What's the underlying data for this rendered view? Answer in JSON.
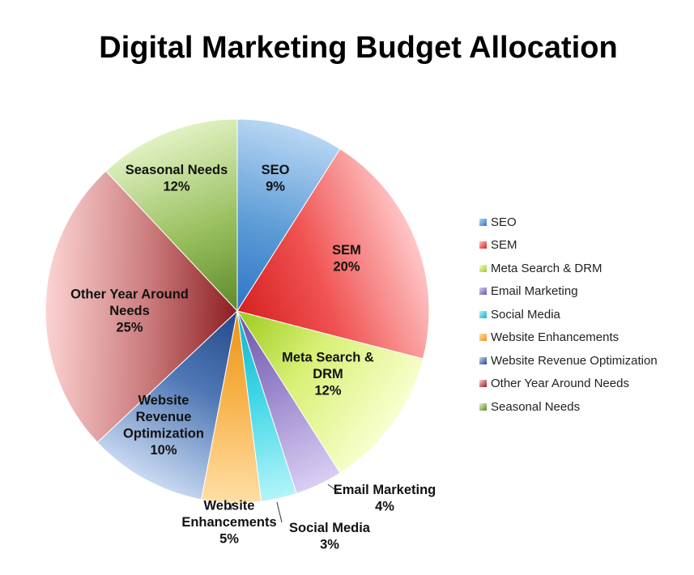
{
  "chart_data": {
    "type": "pie",
    "title": "Digital Marketing Budget Allocation",
    "legend_position": "right",
    "slices": [
      {
        "name": "SEO",
        "value": 9,
        "label_lines": [
          "SEO",
          "9%"
        ],
        "color": "#5B9BD5",
        "light": "#B9D7F4",
        "dark": "#2E75C8"
      },
      {
        "name": "SEM",
        "value": 20,
        "label_lines": [
          "SEM",
          "20%"
        ],
        "color": "#F05252",
        "light": "#FFC6C6",
        "dark": "#D62020"
      },
      {
        "name": "Meta Search & DRM",
        "value": 12,
        "label_lines": [
          "Meta Search &",
          "DRM",
          "12%"
        ],
        "color": "#D8F075",
        "light": "#F9FFD0",
        "dark": "#9CCB1E"
      },
      {
        "name": "Email Marketing",
        "value": 4,
        "label_lines": [
          "Email Marketing",
          "4%"
        ],
        "color": "#9A86CC",
        "light": "#D9CFF3",
        "dark": "#6A55A6"
      },
      {
        "name": "Social Media",
        "value": 3,
        "label_lines": [
          "Social Media",
          "3%"
        ],
        "color": "#3ED6E6",
        "light": "#B4F4FA",
        "dark": "#12B0C8"
      },
      {
        "name": "Website Enhancements",
        "value": 5,
        "label_lines": [
          "Website",
          "Enhancements",
          "5%"
        ],
        "color": "#F7B24A",
        "light": "#FFDFA6",
        "dark": "#EA9416"
      },
      {
        "name": "Website Revenue Optimization",
        "value": 10,
        "label_lines": [
          "Website",
          "Revenue",
          "Optimization",
          "10%"
        ],
        "color": "#4F77B5",
        "light": "#C9DAF2",
        "dark": "#24488A"
      },
      {
        "name": "Other Year Around Needs",
        "value": 25,
        "label_lines": [
          "Other Year Around",
          "Needs",
          "25%"
        ],
        "color": "#C9797A",
        "light": "#FDD3D3",
        "dark": "#8C1E22"
      },
      {
        "name": "Seasonal Needs",
        "value": 12,
        "label_lines": [
          "Seasonal Needs",
          "12%"
        ],
        "color": "#98BF5E",
        "light": "#E2F2C4",
        "dark": "#5E8A2A"
      }
    ]
  }
}
